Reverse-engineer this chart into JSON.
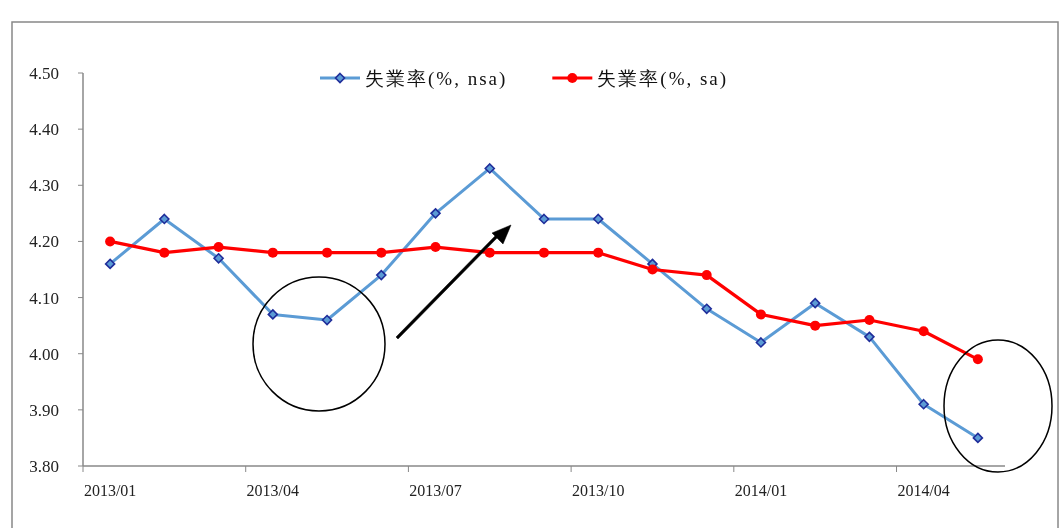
{
  "chart_data": {
    "type": "line",
    "categories": [
      "2013/01",
      null,
      null,
      "2013/04",
      null,
      null,
      "2013/07",
      null,
      null,
      "2013/10",
      null,
      null,
      "2014/01",
      null,
      null,
      "2014/04",
      null
    ],
    "series": [
      {
        "name": "失業率(%, nsa)",
        "color": "#5b9bd5",
        "marker": "diamond",
        "values": [
          4.16,
          4.24,
          4.17,
          4.07,
          4.06,
          4.14,
          4.25,
          4.33,
          4.24,
          4.24,
          4.16,
          4.08,
          4.02,
          4.09,
          4.03,
          3.91,
          3.85
        ]
      },
      {
        "name": "失業率(%, sa)",
        "color": "#ff0000",
        "marker": "circle",
        "values": [
          4.2,
          4.18,
          4.19,
          4.18,
          4.18,
          4.18,
          4.19,
          4.18,
          4.18,
          4.18,
          4.15,
          4.14,
          4.07,
          4.05,
          4.06,
          4.04,
          3.99
        ]
      }
    ],
    "ylim": [
      3.8,
      4.5
    ],
    "yticks": [
      {
        "value": 3.8,
        "label": "3.80"
      },
      {
        "value": 3.9,
        "label": "3.90"
      },
      {
        "value": 4.0,
        "label": "4.00"
      },
      {
        "value": 4.1,
        "label": "4.10"
      },
      {
        "value": 4.2,
        "label": "4.20"
      },
      {
        "value": 4.3,
        "label": "4.30"
      },
      {
        "value": 4.4,
        "label": "4.40"
      },
      {
        "value": 4.5,
        "label": "4.50"
      }
    ],
    "grid": false,
    "legend": "top"
  }
}
